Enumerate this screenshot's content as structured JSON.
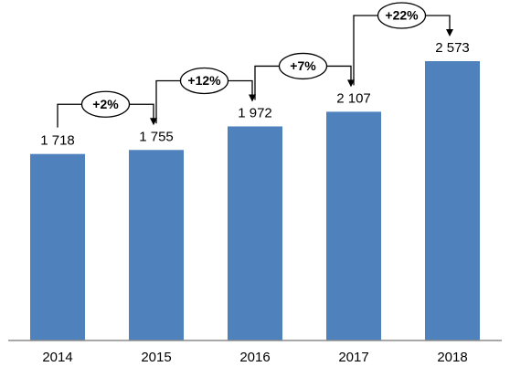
{
  "chart_data": {
    "type": "bar",
    "categories": [
      "2014",
      "2015",
      "2016",
      "2017",
      "2018"
    ],
    "values": [
      1718,
      1755,
      1972,
      2107,
      2573
    ],
    "value_labels": [
      "1 718",
      "1 755",
      "1 972",
      "2 107",
      "2 573"
    ],
    "growth_labels": [
      "+2%",
      "+12%",
      "+7%",
      "+22%"
    ],
    "color": "#4f81bd"
  }
}
